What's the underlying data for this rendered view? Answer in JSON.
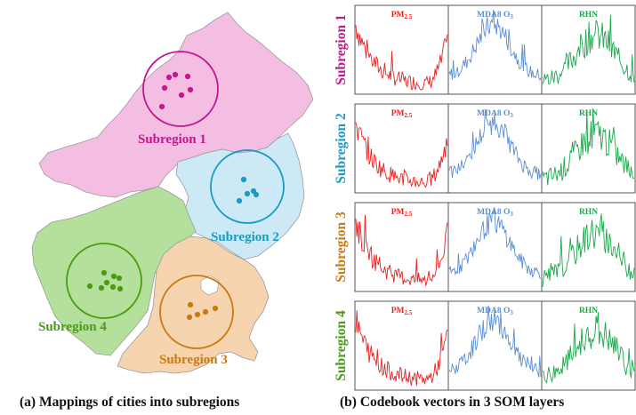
{
  "colors": {
    "sub1": "#c5168f",
    "sub2": "#199bc2",
    "sub3": "#c97a12",
    "sub4": "#4a9a12",
    "fill1": "#f4bde2",
    "fill2": "#cde9f6",
    "fill3": "#f7d4b0",
    "fill4": "#b4e09c",
    "pm": "#e82020",
    "o3": "#5b8fd2",
    "rhn": "#19a84a"
  },
  "map": {
    "labels": [
      "Subregion 1",
      "Subregion 2",
      "Subregion 3",
      "Subregion 4"
    ],
    "caption": "(a) Mappings of cities into subregions"
  },
  "panels": {
    "caption": "(b) Codebook vectors in 3 SOM layers",
    "row_labels": [
      "Subregion 1",
      "Subregion 2",
      "Subregion 3",
      "Subregion 4"
    ],
    "titles": {
      "pm_base": "PM",
      "pm_sub": "2.5",
      "o3": "MDA8 O",
      "o3_sub": "3",
      "rhn": "RHN"
    }
  }
}
